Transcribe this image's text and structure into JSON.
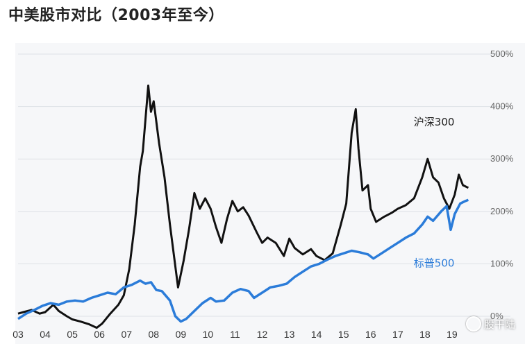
{
  "title": "中美股市对比（2003年至今）",
  "watermark": "股干陆",
  "chart_data": {
    "type": "line",
    "title": "中美股市对比（2003年至今）",
    "xlabel": "",
    "ylabel": "",
    "xlim": [
      2003,
      2020
    ],
    "ylim": [
      0,
      500
    ],
    "grid": true,
    "x_ticks": [
      "03",
      "04",
      "05",
      "06",
      "07",
      "08",
      "09",
      "10",
      "11",
      "12",
      "13",
      "14",
      "15",
      "16",
      "17",
      "18",
      "19"
    ],
    "y_ticks": [
      "0%",
      "100%",
      "200%",
      "300%",
      "400%",
      "500%"
    ],
    "series": [
      {
        "name": "沪深300",
        "color": "#111111",
        "points": [
          [
            2003.0,
            5
          ],
          [
            2003.2,
            8
          ],
          [
            2003.5,
            12
          ],
          [
            2003.8,
            5
          ],
          [
            2004.0,
            8
          ],
          [
            2004.3,
            22
          ],
          [
            2004.5,
            10
          ],
          [
            2004.8,
            0
          ],
          [
            2005.0,
            -6
          ],
          [
            2005.3,
            -10
          ],
          [
            2005.6,
            -15
          ],
          [
            2005.9,
            -22
          ],
          [
            2006.1,
            -14
          ],
          [
            2006.4,
            5
          ],
          [
            2006.7,
            22
          ],
          [
            2006.9,
            40
          ],
          [
            2007.1,
            90
          ],
          [
            2007.3,
            175
          ],
          [
            2007.5,
            285
          ],
          [
            2007.6,
            315
          ],
          [
            2007.8,
            440
          ],
          [
            2007.9,
            390
          ],
          [
            2008.0,
            410
          ],
          [
            2008.2,
            330
          ],
          [
            2008.4,
            265
          ],
          [
            2008.6,
            175
          ],
          [
            2008.8,
            95
          ],
          [
            2008.9,
            55
          ],
          [
            2009.1,
            105
          ],
          [
            2009.3,
            165
          ],
          [
            2009.5,
            235
          ],
          [
            2009.7,
            205
          ],
          [
            2009.9,
            225
          ],
          [
            2010.1,
            205
          ],
          [
            2010.3,
            170
          ],
          [
            2010.5,
            140
          ],
          [
            2010.7,
            185
          ],
          [
            2010.9,
            220
          ],
          [
            2011.1,
            200
          ],
          [
            2011.3,
            208
          ],
          [
            2011.5,
            192
          ],
          [
            2011.8,
            160
          ],
          [
            2012.0,
            140
          ],
          [
            2012.2,
            150
          ],
          [
            2012.5,
            140
          ],
          [
            2012.8,
            115
          ],
          [
            2013.0,
            148
          ],
          [
            2013.2,
            130
          ],
          [
            2013.5,
            118
          ],
          [
            2013.8,
            128
          ],
          [
            2014.0,
            115
          ],
          [
            2014.3,
            107
          ],
          [
            2014.6,
            120
          ],
          [
            2014.9,
            175
          ],
          [
            2015.1,
            215
          ],
          [
            2015.3,
            350
          ],
          [
            2015.45,
            395
          ],
          [
            2015.55,
            320
          ],
          [
            2015.7,
            240
          ],
          [
            2015.9,
            250
          ],
          [
            2016.0,
            205
          ],
          [
            2016.2,
            180
          ],
          [
            2016.5,
            190
          ],
          [
            2016.8,
            198
          ],
          [
            2017.0,
            205
          ],
          [
            2017.3,
            212
          ],
          [
            2017.6,
            225
          ],
          [
            2017.9,
            265
          ],
          [
            2018.1,
            300
          ],
          [
            2018.3,
            265
          ],
          [
            2018.5,
            255
          ],
          [
            2018.7,
            225
          ],
          [
            2018.9,
            205
          ],
          [
            2019.1,
            232
          ],
          [
            2019.25,
            270
          ],
          [
            2019.4,
            250
          ],
          [
            2019.6,
            245
          ]
        ]
      },
      {
        "name": "标普500",
        "color": "#2b7cd9",
        "points": [
          [
            2003.0,
            -5
          ],
          [
            2003.3,
            5
          ],
          [
            2003.6,
            12
          ],
          [
            2003.9,
            20
          ],
          [
            2004.2,
            25
          ],
          [
            2004.5,
            22
          ],
          [
            2004.8,
            28
          ],
          [
            2005.1,
            30
          ],
          [
            2005.4,
            28
          ],
          [
            2005.7,
            35
          ],
          [
            2006.0,
            40
          ],
          [
            2006.3,
            45
          ],
          [
            2006.6,
            42
          ],
          [
            2006.9,
            55
          ],
          [
            2007.2,
            60
          ],
          [
            2007.5,
            68
          ],
          [
            2007.7,
            62
          ],
          [
            2007.9,
            65
          ],
          [
            2008.1,
            50
          ],
          [
            2008.3,
            48
          ],
          [
            2008.6,
            30
          ],
          [
            2008.8,
            0
          ],
          [
            2009.0,
            -10
          ],
          [
            2009.2,
            -5
          ],
          [
            2009.5,
            10
          ],
          [
            2009.8,
            25
          ],
          [
            2010.1,
            35
          ],
          [
            2010.3,
            28
          ],
          [
            2010.6,
            30
          ],
          [
            2010.9,
            45
          ],
          [
            2011.2,
            52
          ],
          [
            2011.5,
            48
          ],
          [
            2011.7,
            35
          ],
          [
            2012.0,
            45
          ],
          [
            2012.3,
            55
          ],
          [
            2012.6,
            58
          ],
          [
            2012.9,
            62
          ],
          [
            2013.2,
            75
          ],
          [
            2013.5,
            85
          ],
          [
            2013.8,
            95
          ],
          [
            2014.1,
            100
          ],
          [
            2014.4,
            108
          ],
          [
            2014.7,
            115
          ],
          [
            2015.0,
            120
          ],
          [
            2015.3,
            125
          ],
          [
            2015.6,
            122
          ],
          [
            2015.9,
            118
          ],
          [
            2016.1,
            110
          ],
          [
            2016.4,
            120
          ],
          [
            2016.7,
            130
          ],
          [
            2017.0,
            140
          ],
          [
            2017.3,
            150
          ],
          [
            2017.6,
            158
          ],
          [
            2017.9,
            175
          ],
          [
            2018.1,
            190
          ],
          [
            2018.3,
            182
          ],
          [
            2018.6,
            200
          ],
          [
            2018.8,
            210
          ],
          [
            2018.95,
            165
          ],
          [
            2019.1,
            195
          ],
          [
            2019.3,
            215
          ],
          [
            2019.5,
            220
          ],
          [
            2019.6,
            222
          ]
        ]
      }
    ],
    "labels": [
      {
        "text": "沪深300",
        "series": 0
      },
      {
        "text": "标普500",
        "series": 1
      }
    ]
  }
}
